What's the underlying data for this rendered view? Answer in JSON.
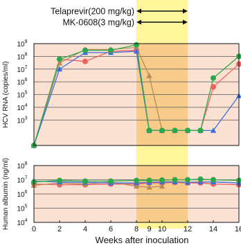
{
  "chart_data": [
    {
      "type": "line",
      "ylabel": "HCV RNA (copies/ml)",
      "ylog": true,
      "ylim": [
        10,
        1000000000
      ],
      "yticks": [
        {
          "exp": "3",
          "value": 1000
        },
        {
          "exp": "4",
          "value": 10000
        },
        {
          "exp": "5",
          "value": 100000
        },
        {
          "exp": "6",
          "value": 1000000
        },
        {
          "exp": "7",
          "value": 10000000
        },
        {
          "exp": "8",
          "value": 100000000
        },
        {
          "exp": "9",
          "value": 1000000000
        }
      ],
      "y_base_label": "10",
      "grid": true,
      "series": [
        {
          "key": "red",
          "color": "#f06060",
          "marker": "circle",
          "x": [
            0,
            2,
            4,
            6,
            8,
            9,
            10,
            11,
            12,
            13,
            14,
            16
          ],
          "y": [
            10,
            60000000,
            40000000,
            250000000,
            300000000,
            150,
            150,
            150,
            150,
            150,
            400000,
            25000000
          ]
        },
        {
          "key": "orange",
          "color": "#b88a58",
          "marker": "triangle",
          "x": [
            0,
            2,
            4,
            6,
            8,
            9,
            10
          ],
          "y": [
            10,
            30000000,
            350000000,
            350000000,
            500000000,
            3000000,
            150
          ]
        },
        {
          "key": "blue",
          "color": "#3a6fe0",
          "marker": "triangle",
          "x": [
            0,
            2,
            4,
            6,
            8,
            9,
            10,
            11,
            12,
            13,
            14,
            16
          ],
          "y": [
            10,
            10000000,
            200000000,
            200000000,
            250000000,
            150,
            150,
            150,
            150,
            150,
            150,
            80000
          ]
        },
        {
          "key": "green",
          "color": "#2aa84a",
          "marker": "circle",
          "x": [
            0,
            2,
            4,
            6,
            8,
            9,
            10,
            11,
            12,
            13,
            14,
            16
          ],
          "y": [
            10,
            60000000,
            300000000,
            300000000,
            800000000,
            150,
            150,
            150,
            150,
            150,
            2000000,
            100000000
          ]
        }
      ]
    },
    {
      "type": "line",
      "ylabel": "Human albumin (ng/ml)",
      "xlabel": "Weeks after inoculation",
      "ylog": true,
      "ylim": [
        10000,
        100000000
      ],
      "yticks": [
        {
          "exp": "4",
          "value": 10000
        },
        {
          "exp": "5",
          "value": 100000
        },
        {
          "exp": "6",
          "value": 1000000
        },
        {
          "exp": "7",
          "value": 10000000
        },
        {
          "exp": "8",
          "value": 100000000
        }
      ],
      "y_base_label": "10",
      "grid": true,
      "xticks": [
        {
          "label": "0",
          "value": 0
        },
        {
          "label": "2",
          "value": 2
        },
        {
          "label": "4",
          "value": 4
        },
        {
          "label": "6",
          "value": 6
        },
        {
          "label": "8",
          "value": 8
        },
        {
          "label": "9",
          "value": 9
        },
        {
          "label": "10",
          "value": 10
        },
        {
          "label": "12",
          "value": 12
        },
        {
          "label": "14",
          "value": 14
        },
        {
          "label": "16",
          "value": 16
        }
      ],
      "series": [
        {
          "key": "red",
          "color": "#f06060",
          "marker": "circle",
          "x": [
            0,
            2,
            4,
            6,
            8,
            9,
            10,
            11,
            12,
            13,
            14,
            16
          ],
          "y": [
            5000000,
            4500000,
            4500000,
            5000000,
            5000000,
            6000000,
            6000000,
            6500000,
            6000000,
            6000000,
            5000000,
            4500000
          ]
        },
        {
          "key": "orange",
          "color": "#b88a58",
          "marker": "triangle",
          "x": [
            0,
            2,
            4,
            6,
            8,
            9,
            10
          ],
          "y": [
            4000000,
            6000000,
            5000000,
            7000000,
            3500000,
            3000000,
            3500000
          ]
        },
        {
          "key": "blue",
          "color": "#3a6fe0",
          "marker": "triangle",
          "x": [
            0,
            2,
            4,
            6,
            8,
            9,
            10,
            11,
            12,
            13,
            14,
            16
          ],
          "y": [
            8000000,
            7000000,
            6500000,
            6000000,
            6000000,
            6500000,
            7000000,
            7000000,
            6500000,
            7000000,
            7000000,
            6000000
          ]
        },
        {
          "key": "green",
          "color": "#2aa84a",
          "marker": "circle",
          "x": [
            0,
            2,
            4,
            6,
            8,
            9,
            10,
            11,
            12,
            13,
            14,
            16
          ],
          "y": [
            7000000,
            9000000,
            8000000,
            8000000,
            9000000,
            9000000,
            9500000,
            10000000,
            10000000,
            11000000,
            10000000,
            9000000
          ]
        }
      ]
    }
  ],
  "treatment_period": {
    "start": 8,
    "end": 12,
    "color": "#fff59a"
  },
  "plot_background": "#fbe1d2",
  "overlap_color": "#f7cc8a",
  "treatments": [
    {
      "label": "Telaprevir(200 mg/kg)",
      "start": 8,
      "end": 12
    },
    {
      "label": "MK-0608(3 mg/kg)",
      "start": 8,
      "end": 12
    }
  ]
}
